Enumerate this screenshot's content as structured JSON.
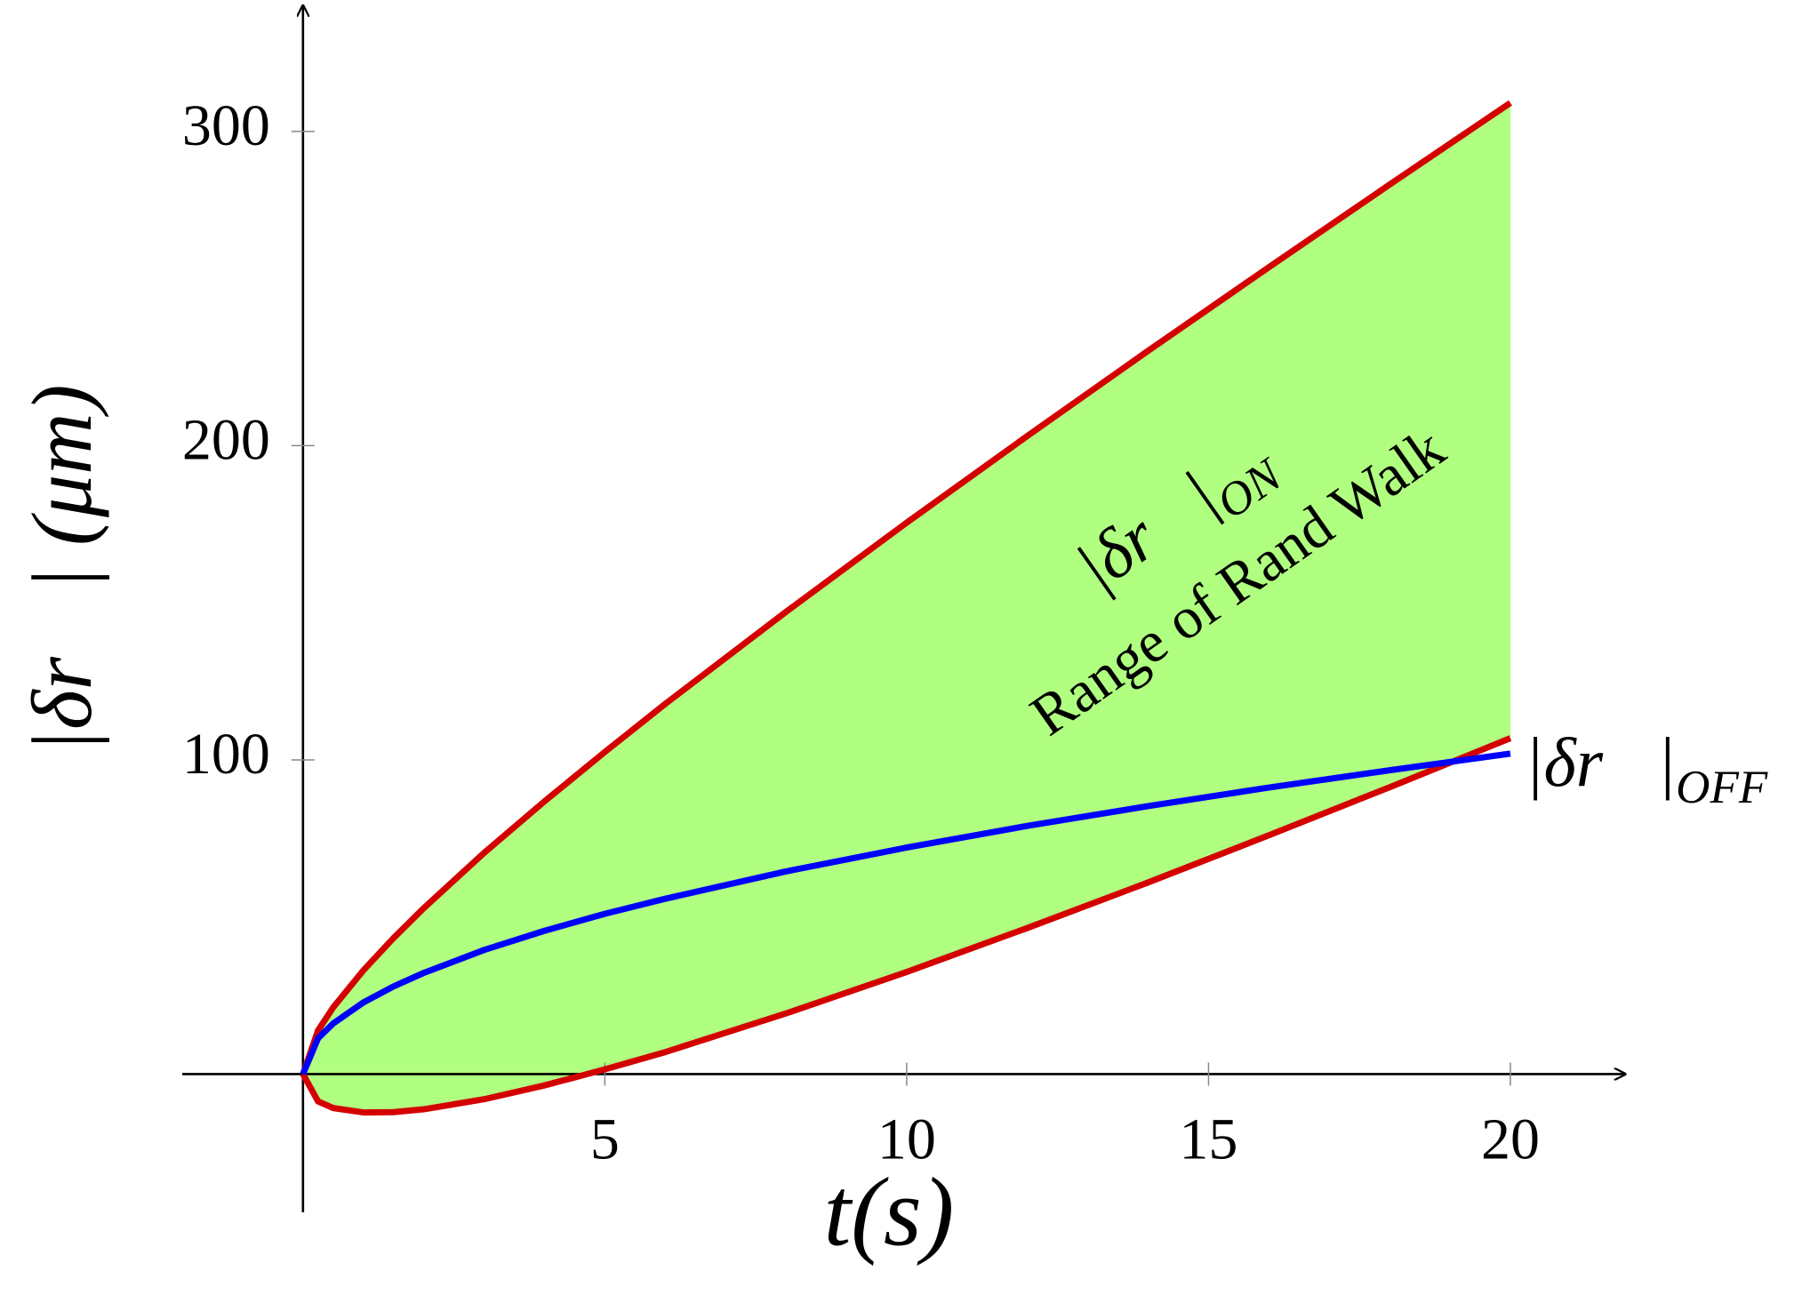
{
  "chart_data": {
    "type": "line",
    "xlabel": "t(s)",
    "ylabel": "|δr⃗| (μm)",
    "x": [
      0,
      0.25,
      0.5,
      1,
      1.5,
      2,
      3,
      4,
      5,
      6,
      8,
      10,
      12,
      14,
      16,
      18,
      20
    ],
    "series": [
      {
        "color": "#d40000",
        "values": [
          0,
          13.9,
          21.2,
          33.0,
          43.3,
          52.8,
          70.4,
          86.8,
          102.5,
          117.8,
          147.1,
          175.5,
          203.1,
          230.2,
          256.8,
          283.1,
          309.1
        ]
      },
      {
        "color": "#d40000",
        "values": [
          0,
          -8.7,
          -10.8,
          -12.2,
          -12.1,
          -11.2,
          -8.0,
          -3.6,
          1.5,
          7.0,
          19.3,
          32.5,
          46.5,
          61.0,
          76.0,
          91.3,
          106.9
        ]
      },
      {
        "color": "#0000ff",
        "values": [
          0,
          11.4,
          16.1,
          22.8,
          27.9,
          32.2,
          39.5,
          45.6,
          51.0,
          55.8,
          64.5,
          72.1,
          79.0,
          85.3,
          91.2,
          96.7,
          102.0
        ]
      }
    ],
    "fill_between": [
      0,
      1
    ],
    "fill_color": "#b0ff80",
    "annotations": [
      {
        "text": "|δr⃗|",
        "subscript": "ON"
      },
      {
        "text": "Range of Rand Walk"
      },
      {
        "text": "|δr⃗|",
        "subscript": "OFF"
      }
    ],
    "xlim": [
      -2,
      21.9
    ],
    "ylim": [
      -44,
      340
    ],
    "xticks": [
      5,
      10,
      15,
      20
    ],
    "yticks": [
      100,
      200,
      300
    ]
  }
}
